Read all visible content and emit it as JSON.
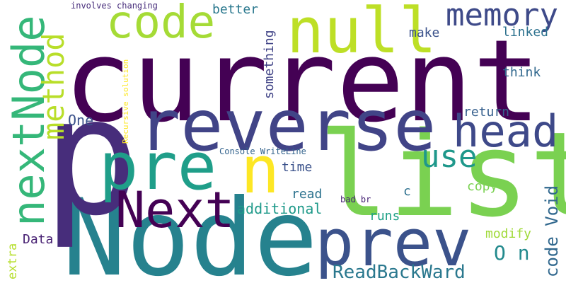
{
  "words": [
    {
      "text": "current",
      "color": "#440154",
      "vertical": false
    },
    {
      "text": "Node",
      "color": "#26828e",
      "vertical": false
    },
    {
      "text": "p",
      "color": "#472d7b",
      "vertical": false
    },
    {
      "text": "list",
      "color": "#7ad151",
      "vertical": false
    },
    {
      "text": "reverse",
      "color": "#414487",
      "vertical": false
    },
    {
      "text": "prev",
      "color": "#3b528b",
      "vertical": false
    },
    {
      "text": "pre",
      "color": "#1f9e89",
      "vertical": false
    },
    {
      "text": "null",
      "color": "#bddf26",
      "vertical": false
    },
    {
      "text": "Next",
      "color": "#440154",
      "vertical": false
    },
    {
      "text": "nextNode",
      "color": "#35b779",
      "vertical": true
    },
    {
      "text": "n",
      "color": "#fde725",
      "vertical": false
    },
    {
      "text": "code",
      "color": "#a5db36",
      "vertical": false
    },
    {
      "text": "head",
      "color": "#3e4989",
      "vertical": false
    },
    {
      "text": "memory",
      "color": "#3e4a89",
      "vertical": false
    },
    {
      "text": "method",
      "color": "#b8de29",
      "vertical": true
    },
    {
      "text": "use",
      "color": "#1f988b",
      "vertical": false
    },
    {
      "text": "ReadBackWard",
      "color": "#2a788e",
      "vertical": false
    },
    {
      "text": "O n",
      "color": "#238a8d",
      "vertical": false
    },
    {
      "text": "code Void",
      "color": "#31688e",
      "vertical": true
    },
    {
      "text": "additional",
      "color": "#1f9a8a",
      "vertical": false
    },
    {
      "text": "One",
      "color": "#3b528b",
      "vertical": false
    },
    {
      "text": "better",
      "color": "#2a788e",
      "vertical": false
    },
    {
      "text": "something",
      "color": "#414487",
      "vertical": true
    },
    {
      "text": "make",
      "color": "#3b528b",
      "vertical": false
    },
    {
      "text": "linked",
      "color": "#2c718e",
      "vertical": false
    },
    {
      "text": "think",
      "color": "#31688e",
      "vertical": false
    },
    {
      "text": "return",
      "color": "#355f8d",
      "vertical": false
    },
    {
      "text": "time",
      "color": "#3b528b",
      "vertical": false
    },
    {
      "text": "copy",
      "color": "#7ad151",
      "vertical": false
    },
    {
      "text": "read",
      "color": "#2c728e",
      "vertical": false
    },
    {
      "text": "runs",
      "color": "#1fa187",
      "vertical": false
    },
    {
      "text": "c",
      "color": "#2d708e",
      "vertical": false
    },
    {
      "text": "modify",
      "color": "#a0da39",
      "vertical": false
    },
    {
      "text": "Data",
      "color": "#482173",
      "vertical": false
    },
    {
      "text": "extra",
      "color": "#b5de2b",
      "vertical": true
    },
    {
      "text": "Console WriteLine",
      "color": "#33638d",
      "vertical": false
    },
    {
      "text": "Recursive solution",
      "color": "#fde725",
      "vertical": true
    },
    {
      "text": "involves changing",
      "color": "#472d7b",
      "vertical": false
    },
    {
      "text": "bad br",
      "color": "#482475",
      "vertical": false
    }
  ]
}
